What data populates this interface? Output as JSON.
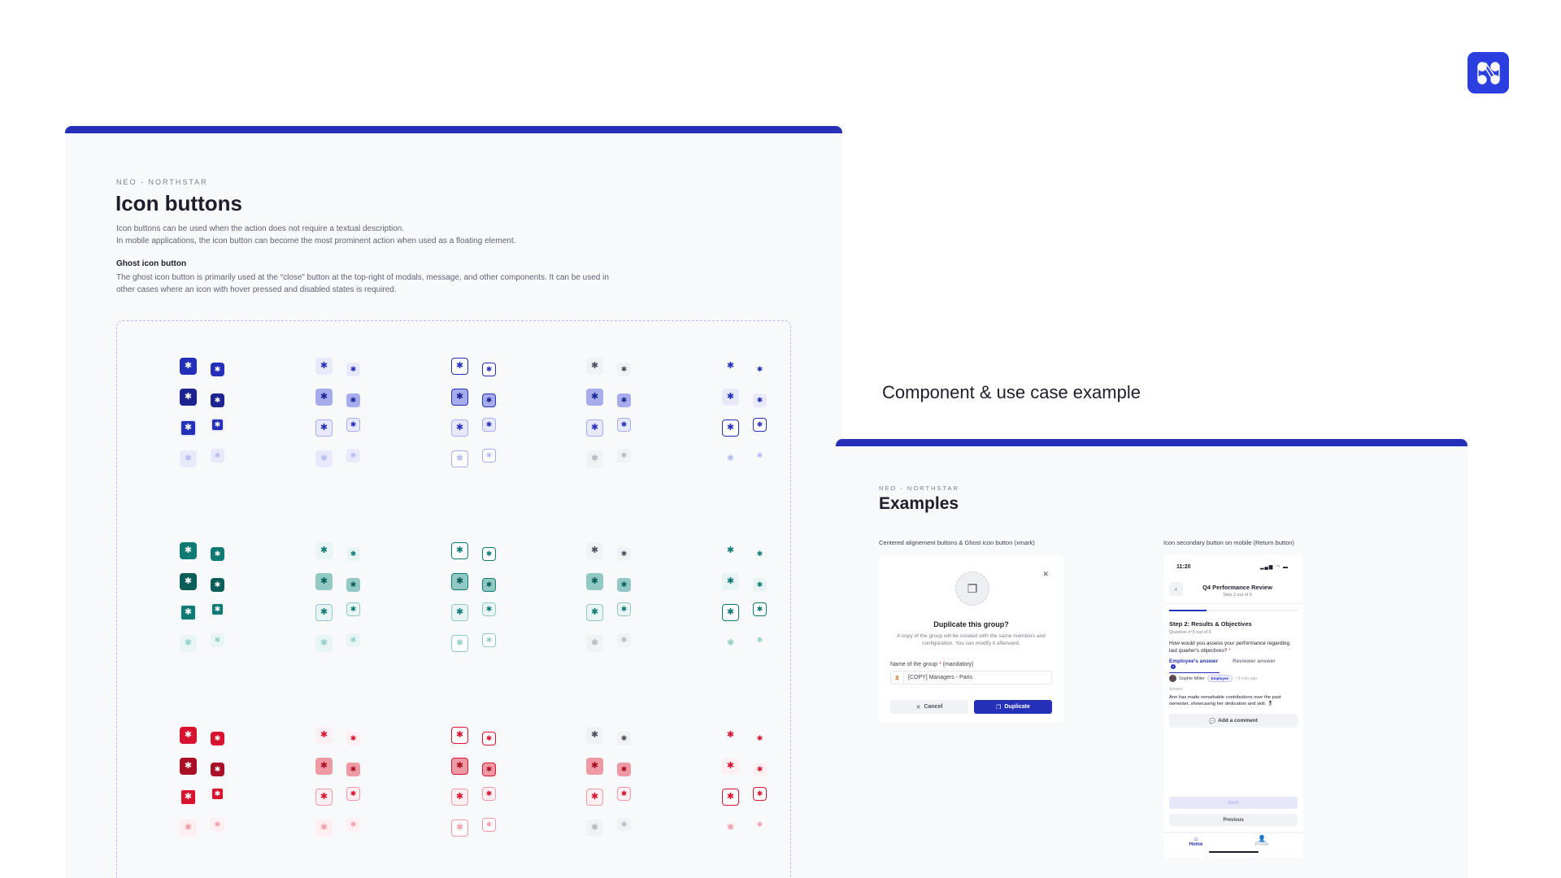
{
  "brand": {
    "logo_icon": "northstar-logo-icon",
    "color": "#2b3fe0"
  },
  "left_panel": {
    "eyebrow": "NEO - NORTHSTAR",
    "title": "Icon buttons",
    "description_line1": "Icon buttons can be used when the action does not require a textual description.",
    "description_line2": "In mobile applications, the icon button can become the most prominent action when used as a floating element.",
    "ghost_heading": "Ghost icon button",
    "ghost_line1": "The ghost icon button is primarily used at the “close” button at the top-right of modals, message, and other components. It can be used in",
    "ghost_line2": "other cases where an icon with hover pressed and disabled states is required.",
    "icon_glyph": "✱",
    "variants": [
      "primary",
      "secondary",
      "outline",
      "tertiary",
      "ghost"
    ],
    "states": [
      "default",
      "pressed",
      "focus",
      "disabled"
    ],
    "palettes": [
      {
        "name": "brand",
        "main": "#2530b8",
        "dark": "#1b2490",
        "soft": "#e8eafb",
        "mid": "#a6acec",
        "disabled": "#b7bcf0",
        "tertiary_glyph": "#4a4d5c"
      },
      {
        "name": "teal",
        "main": "#0f7a74",
        "dark": "#0b5d58",
        "soft": "#e8f5f4",
        "mid": "#92c9c5",
        "disabled": "#93cfc9",
        "tertiary_glyph": "#4a4d5c"
      },
      {
        "name": "danger",
        "main": "#d9132f",
        "dark": "#a90f25",
        "soft": "#fdeff2",
        "mid": "#ee9aa5",
        "disabled": "#f2a0ab",
        "tertiary_glyph": "#4a4d5c"
      }
    ]
  },
  "section_title": "Component & use case example",
  "right_panel": {
    "eyebrow": "NEO - NORTHSTAR",
    "title": "Examples",
    "example1_label": "Centered alignement buttons & Ghost icon button (xmark)",
    "example2_label": "Icon secondary button on mobile (Return button)",
    "dialog": {
      "icon": "copy-icon",
      "close": "✕",
      "title": "Duplicate this group?",
      "description": "A copy of the group will be created with the same members and configuration. You can modify it afterward.",
      "field_label": "Name of the group",
      "field_required": "*",
      "field_hint": "(mandatory)",
      "field_prefix": "⧗",
      "field_value": "[COPY] Managers - Paris",
      "cancel_label": "Cancel",
      "cancel_icon": "✕",
      "duplicate_label": "Duplicate",
      "duplicate_icon": "❐"
    },
    "mobile": {
      "time": "11:20",
      "status_icons": "▂▄▆ ◠ ▬",
      "back_icon": "‹",
      "title": "Q4 Performance Review",
      "subtitle": "Step 2 out of 6",
      "progress_percent": 29,
      "step_title": "Step 2: Results & Objectives",
      "question_number": "Question n°3 out of 6",
      "question": "How would you assess your performance regarding last quarter's objectives?",
      "question_required": "*",
      "tab_employee": "Employee's answer",
      "tab_employee_badge": "i",
      "tab_reviewer": "Reviewer answer",
      "author_name": "Sophie Miller",
      "author_badge": "Employee",
      "author_time": "• 3 min ago",
      "answer_label": "Answer:",
      "answer_text": "Ann has made remarkable contributions over the past semester, showcasing her dedication and skill. 🎖",
      "comment_icon": "💬",
      "comment_label": "Add a comment",
      "next_label": "Next",
      "previous_label": "Previous",
      "nav_home_icon": "⌂",
      "nav_home": "Home",
      "nav_profile_icon": "👤",
      "nav_profile": "Profile"
    }
  }
}
